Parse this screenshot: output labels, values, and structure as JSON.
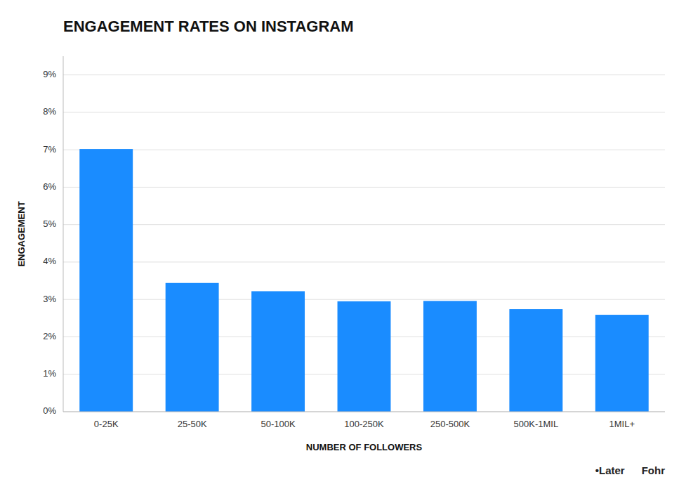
{
  "chart_data": {
    "type": "bar",
    "title": "ENGAGEMENT RATES ON INSTAGRAM",
    "categories": [
      "0-25K",
      "25-50K",
      "50-100K",
      "100-250K",
      "250-500K",
      "500K-1MIL",
      "1MIL+"
    ],
    "values": [
      7.02,
      3.44,
      3.22,
      2.95,
      2.96,
      2.74,
      2.59
    ],
    "color": "#1a8cff",
    "xlabel": "NUMBER OF FOLLOWERS",
    "ylabel": "ENGAGEMENT",
    "ylim": [
      0,
      9.5
    ],
    "yticks": [
      {
        "value": 0,
        "label": "0%"
      },
      {
        "value": 1,
        "label": "1%"
      },
      {
        "value": 2,
        "label": "2%"
      },
      {
        "value": 3,
        "label": "3%"
      },
      {
        "value": 4,
        "label": "4%"
      },
      {
        "value": 5,
        "label": "5%"
      },
      {
        "value": 6,
        "label": "6%"
      },
      {
        "value": 7,
        "label": "7%"
      },
      {
        "value": 8,
        "label": "8%"
      },
      {
        "value": 9,
        "label": "9%"
      }
    ],
    "grid": true,
    "annotations": [
      "•Later",
      "Fohr"
    ]
  }
}
